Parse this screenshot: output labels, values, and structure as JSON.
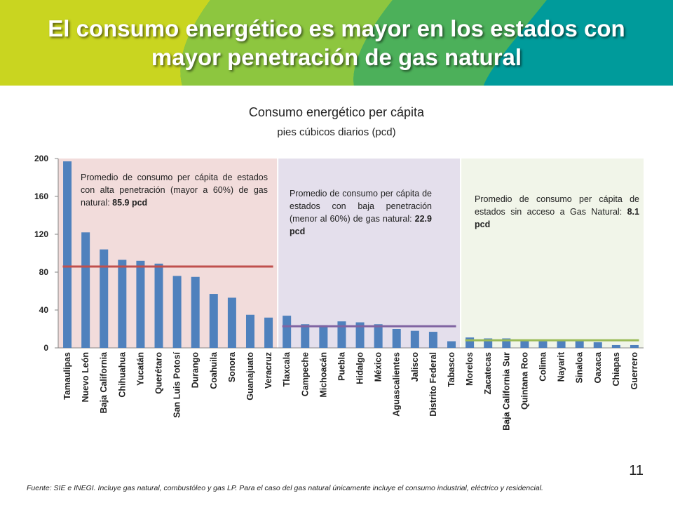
{
  "slide": {
    "title_line_1": "El consumo energético es mayor en los estados con",
    "title_line_2": "mayor penetración de gas natural",
    "page_number": "11",
    "footnote": "Fuente: SIE e INEGI. Incluye gas natural, combustóleo y gas LP. Para el caso del gas natural únicamente incluye el consumo industrial, eléctrico y residencial.",
    "banner_colors": [
      "#c9d520",
      "#8dc63f",
      "#4cb05a",
      "#00a88f",
      "#009b9b"
    ]
  },
  "chart_data": {
    "type": "bar",
    "title": "Consumo energético per cápita",
    "subtitle": "pies cúbicos diarios (pcd)",
    "xlabel": "",
    "ylabel": "",
    "ylim": [
      0,
      200
    ],
    "yticks": [
      0,
      40,
      80,
      120,
      160,
      200
    ],
    "bar_color": "#4f81bd",
    "categories": [
      "Tamaulipas",
      "Nuevo León",
      "Baja California",
      "Chihuahua",
      "Yucatán",
      "Querétaro",
      "San Luis Potosí",
      "Durango",
      "Coahuila",
      "Sonora",
      "Guanajuato",
      "Veracruz",
      "Tlaxcala",
      "Campeche",
      "Michoacán",
      "Puebla",
      "Hidalgo",
      "México",
      "Aguascalientes",
      "Jalisco",
      "Distrito Federal",
      "Tabasco",
      "Morelos",
      "Zacatecas",
      "Baja California Sur",
      "Quintana Roo",
      "Colima",
      "Nayarit",
      "Sinaloa",
      "Oaxaca",
      "Chiapas",
      "Guerrero"
    ],
    "values": [
      197,
      122,
      104,
      93,
      92,
      89,
      76,
      75,
      57,
      53,
      35,
      32,
      34,
      25,
      24,
      28,
      27,
      25,
      20,
      18,
      17,
      7,
      11,
      10,
      10,
      8,
      7,
      8,
      8,
      6,
      3,
      3
    ],
    "groups": [
      {
        "name": "alta",
        "start": 0,
        "end": 11,
        "background": "#f2dcdb",
        "average": 85.9,
        "average_color": "#c0504d",
        "note": "Promedio de consumo per cápita de estados con alta penetración (mayor a 60%) de gas natural: ",
        "note_bold": "85.9 pcd",
        "note_align": "justify"
      },
      {
        "name": "baja",
        "start": 12,
        "end": 21,
        "background": "#e4dfec",
        "average": 22.9,
        "average_color": "#8064a2",
        "note": "Promedio de consumo per cápita de estados con baja penetración (menor al 60%) de gas natural: ",
        "note_bold": "22.9 pcd",
        "note_align": "justify"
      },
      {
        "name": "sin-acceso",
        "start": 22,
        "end": 31,
        "background": "#f1f5e9",
        "average": 8.1,
        "average_color": "#9bbb59",
        "note": "Promedio de consumo per cápita de estados sin acceso a Gas Natural: ",
        "note_bold": "8.1 pcd",
        "note_align": "justify"
      }
    ]
  }
}
